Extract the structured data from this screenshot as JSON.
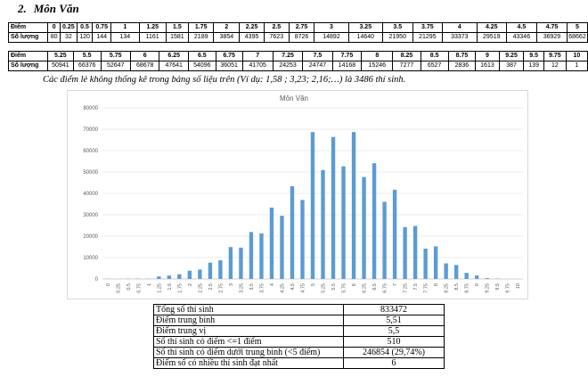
{
  "heading": {
    "number": "2.",
    "title": "Môn Văn"
  },
  "table1": {
    "row1_label": "Điểm",
    "row2_label": "Số lượng",
    "scores": [
      "0",
      "0.25",
      "0.5",
      "0.75",
      "1",
      "1.25",
      "1.5",
      "1.75",
      "2",
      "2.25",
      "2.5",
      "2.75",
      "3",
      "3.25",
      "3.5",
      "3.75",
      "4",
      "4.25",
      "4.5",
      "4.75",
      "5"
    ],
    "counts": [
      "80",
      "32",
      "120",
      "144",
      "134",
      "1161",
      "1581",
      "2189",
      "3854",
      "4395",
      "7623",
      "8726",
      "14892",
      "14640",
      "21950",
      "21295",
      "33373",
      "29519",
      "43346",
      "36929",
      "68662"
    ]
  },
  "table2": {
    "row1_label": "Điểm",
    "row2_label": "Số lượng",
    "scores": [
      "5.25",
      "5.5",
      "5.75",
      "6",
      "6.25",
      "6.5",
      "6.75",
      "7",
      "7.25",
      "7.5",
      "7.75",
      "8",
      "8.25",
      "8.5",
      "8.75",
      "9",
      "9.25",
      "9.5",
      "9.75",
      "10"
    ],
    "counts": [
      "50941",
      "66376",
      "52647",
      "68678",
      "47641",
      "54096",
      "36051",
      "41705",
      "24253",
      "24747",
      "14168",
      "15246",
      "7277",
      "6527",
      "2836",
      "1613",
      "387",
      "139",
      "12",
      "1"
    ]
  },
  "note": "Các điểm lẻ không thống kê trong bảng số liệu trên (Ví dụ: 1,58 ; 3,23; 2,16;…) là 3486 thí sinh.",
  "chart_data": {
    "type": "bar",
    "title": "Môn Văn",
    "xlabel": "",
    "ylabel": "",
    "categories": [
      "0",
      "0.25",
      "0.5",
      "0.75",
      "1",
      "1.25",
      "1.5",
      "1.75",
      "2",
      "2.25",
      "2.5",
      "2.75",
      "3",
      "3.25",
      "3.5",
      "3.75",
      "4",
      "4.25",
      "4.5",
      "4.75",
      "5",
      "5.25",
      "5.5",
      "5.75",
      "6",
      "6.25",
      "6.5",
      "6.75",
      "7",
      "7.25",
      "7.5",
      "7.75",
      "8",
      "8.25",
      "8.5",
      "8.75",
      "9",
      "9.25",
      "9.5",
      "9.75",
      "10"
    ],
    "values": [
      80,
      32,
      120,
      144,
      134,
      1161,
      1581,
      2189,
      3854,
      4395,
      7623,
      8726,
      14892,
      14640,
      21950,
      21295,
      33373,
      29519,
      43346,
      36929,
      68662,
      50941,
      66376,
      52647,
      68678,
      47641,
      54096,
      36051,
      41705,
      24253,
      24747,
      14168,
      15246,
      7277,
      6527,
      2836,
      1613,
      387,
      139,
      12,
      1
    ],
    "ylim": [
      0,
      80000
    ],
    "yticks": [
      "0",
      "10000",
      "20000",
      "30000",
      "40000",
      "50000",
      "60000",
      "70000",
      "80000"
    ],
    "grid": true,
    "bar_color": "#5B9BD5"
  },
  "summary": {
    "rows": [
      {
        "label": "Tổng số thí sinh",
        "value": "833472"
      },
      {
        "label": "Điểm trung bình",
        "value": "5,51"
      },
      {
        "label": "Điểm trung vị",
        "value": "5,5"
      },
      {
        "label": "Số thí sinh có điểm <=1 điểm",
        "value": "510"
      },
      {
        "label": "Số thí sinh có điểm dưới trung bình (<5 điểm)",
        "value": "246854 (29,74%)"
      },
      {
        "label": "Điểm số có nhiều thí sinh đạt nhất",
        "value": "6"
      }
    ]
  }
}
